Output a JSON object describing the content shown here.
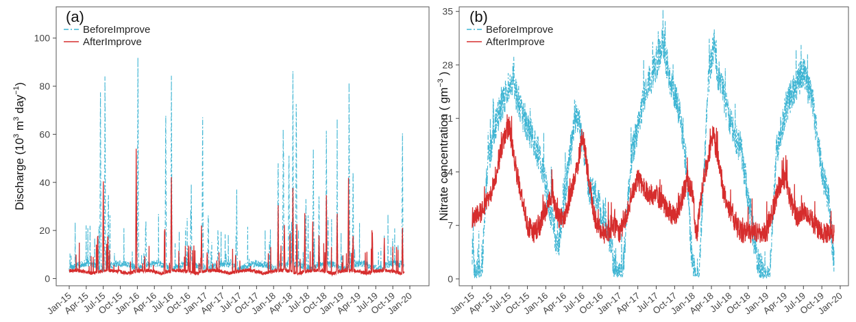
{
  "chart_data": [
    {
      "panel_label": "(a)",
      "type": "line",
      "ylabel": "Discharge (10^3 m^3 day^-1)",
      "ylabel_parts": {
        "pre": "Discharge (10",
        "e1": "3",
        "mid": " m",
        "e2": "3",
        "mid2": " day",
        "e3": "−1",
        "post": ")"
      },
      "xlabel": "",
      "ylim": [
        -3,
        113
      ],
      "yticks": [
        0,
        20,
        40,
        60,
        80,
        100
      ],
      "ytick_labels": [
        "0",
        "20",
        "40",
        "60",
        "80",
        "100"
      ],
      "xtick_labels": [
        "Jan-15",
        "Apr-15",
        "Jul-15",
        "Oct-15",
        "Jan-16",
        "Apr-16",
        "Jul-16",
        "Oct-16",
        "Jan-17",
        "Apr-17",
        "Jul-17",
        "Oct-17",
        "Jan-18",
        "Apr-18",
        "Jul-18",
        "Oct-18",
        "Jan-19",
        "Apr-19",
        "Jul-19",
        "Oct-19",
        "Jan-20"
      ],
      "grid": false,
      "legend_position": "top-left",
      "series": [
        {
          "name": "BeforeImprove",
          "color": "#3fb5d3",
          "style": "dashdot",
          "peaks": [
            [
              5.5,
              82
            ],
            [
              6.3,
              89
            ],
            [
              6.9,
              40
            ],
            [
              12.1,
              96
            ],
            [
              13.5,
              25
            ],
            [
              17,
              75
            ],
            [
              18,
              88
            ],
            [
              21.5,
              40
            ],
            [
              23.5,
              68
            ],
            [
              24.5,
              30
            ],
            [
              26.2,
              22
            ],
            [
              29.5,
              37
            ],
            [
              36.8,
              52
            ],
            [
              37.7,
              65
            ],
            [
              38.7,
              56
            ],
            [
              39.4,
              87
            ],
            [
              40,
              80
            ],
            [
              41.7,
              35
            ],
            [
              43,
              56
            ],
            [
              44,
              38
            ],
            [
              45.3,
              62
            ],
            [
              47.2,
              46
            ],
            [
              49.3,
              83
            ],
            [
              50,
              50
            ],
            [
              53.4,
              18
            ],
            [
              55.5,
              19
            ],
            [
              58.7,
              63
            ]
          ],
          "base": 4.5
        },
        {
          "name": "AfterImprove",
          "color": "#d62d2d",
          "style": "solid",
          "peaks": [
            [
              5,
              20
            ],
            [
              6,
              41
            ],
            [
              6.8,
              20
            ],
            [
              11.8,
              54
            ],
            [
              13.3,
              10
            ],
            [
              16.8,
              23
            ],
            [
              18,
              44
            ],
            [
              21,
              15
            ],
            [
              23.3,
              23
            ],
            [
              24.3,
              12
            ],
            [
              26,
              8
            ],
            [
              29.3,
              10
            ],
            [
              36.8,
              25
            ],
            [
              37.9,
              24
            ],
            [
              38.9,
              20
            ],
            [
              39.4,
              38
            ],
            [
              40.1,
              25
            ],
            [
              41.5,
              28
            ],
            [
              42.9,
              25
            ],
            [
              44,
              20
            ],
            [
              45.3,
              35
            ],
            [
              47.2,
              27
            ],
            [
              49.2,
              42
            ],
            [
              50,
              20
            ],
            [
              53.4,
              20
            ],
            [
              55.5,
              18
            ],
            [
              58.7,
              22
            ]
          ],
          "base": 2.5
        }
      ]
    },
    {
      "panel_label": "(b)",
      "type": "line",
      "ylabel": "Nitrate concentration ( gm^-3 )",
      "ylabel_parts": {
        "pre": "Nitrate concentration ( gm",
        "e1": "−3",
        "post": " )"
      },
      "xlabel": "",
      "ylim": [
        -0.9,
        35.6
      ],
      "yticks": [
        0,
        7,
        14,
        21,
        28,
        35
      ],
      "ytick_labels": [
        "0",
        "7",
        "14",
        "21",
        "28",
        "35"
      ],
      "xtick_labels": [
        "Jan-15",
        "Apr-15",
        "Jul-15",
        "Oct-15",
        "Jan-16",
        "Apr-16",
        "Jul-16",
        "Oct-16",
        "Jan-17",
        "Apr-17",
        "Jul-17",
        "Oct-17",
        "Jan-18",
        "Apr-18",
        "Jul-18",
        "Oct-18",
        "Jan-19",
        "Apr-19",
        "Jul-19",
        "Oct-19",
        "Jan-20"
      ],
      "grid": false,
      "legend_position": "top-left",
      "series": [
        {
          "name": "BeforeImprove",
          "color": "#3fb5d3",
          "style": "dashdot",
          "knots": [
            [
              0,
              4
            ],
            [
              0.4,
              0.5
            ],
            [
              1.5,
              0.5
            ],
            [
              2.5,
              15
            ],
            [
              4,
              21
            ],
            [
              5.5,
              24
            ],
            [
              6.5,
              26
            ],
            [
              8,
              22
            ],
            [
              10,
              18
            ],
            [
              11,
              16
            ],
            [
              12,
              12
            ],
            [
              13,
              8
            ],
            [
              14,
              4
            ],
            [
              15,
              11
            ],
            [
              16,
              16
            ],
            [
              17,
              22
            ],
            [
              18,
              18
            ],
            [
              19,
              12
            ],
            [
              20,
              11
            ],
            [
              21.5,
              8
            ],
            [
              22,
              7
            ],
            [
              23.5,
              0.5
            ],
            [
              24.5,
              0.5
            ],
            [
              26,
              16
            ],
            [
              28,
              24
            ],
            [
              30,
              28
            ],
            [
              31,
              31
            ],
            [
              32,
              27
            ],
            [
              34,
              21
            ],
            [
              35,
              14
            ],
            [
              35.7,
              4
            ],
            [
              36.2,
              0.5
            ],
            [
              37,
              0.5
            ],
            [
              38.5,
              26
            ],
            [
              39.5,
              31
            ],
            [
              40,
              27
            ],
            [
              42,
              21
            ],
            [
              44,
              16
            ],
            [
              45.5,
              8
            ],
            [
              46.5,
              2
            ],
            [
              47.8,
              0.5
            ],
            [
              48.5,
              0.5
            ],
            [
              49.5,
              16
            ],
            [
              51,
              22
            ],
            [
              52.5,
              25
            ],
            [
              54,
              27
            ],
            [
              55.5,
              23
            ],
            [
              57,
              14
            ],
            [
              58,
              11
            ],
            [
              59,
              2
            ]
          ]
        },
        {
          "name": "AfterImprove",
          "color": "#d62d2d",
          "style": "solid",
          "knots": [
            [
              0,
              8
            ],
            [
              2,
              9
            ],
            [
              3,
              11
            ],
            [
              4,
              14
            ],
            [
              5,
              18
            ],
            [
              6,
              20
            ],
            [
              7,
              15
            ],
            [
              8,
              11
            ],
            [
              9,
              7
            ],
            [
              10,
              6
            ],
            [
              11,
              7
            ],
            [
              12,
              9
            ],
            [
              13,
              11
            ],
            [
              14,
              8
            ],
            [
              15,
              8
            ],
            [
              16,
              11
            ],
            [
              17,
              14
            ],
            [
              18,
              19
            ],
            [
              19,
              13
            ],
            [
              20,
              8
            ],
            [
              21,
              6
            ],
            [
              22,
              6
            ],
            [
              23,
              7
            ],
            [
              24,
              6
            ],
            [
              25,
              8
            ],
            [
              26,
              11
            ],
            [
              27,
              13
            ],
            [
              28,
              12
            ],
            [
              29,
              11
            ],
            [
              30,
              11
            ],
            [
              31,
              10
            ],
            [
              32,
              9
            ],
            [
              33,
              8
            ],
            [
              34,
              10
            ],
            [
              35,
              13
            ],
            [
              36,
              11
            ],
            [
              36.5,
              5
            ],
            [
              37.5,
              12
            ],
            [
              38.5,
              16
            ],
            [
              39.3,
              19
            ],
            [
              40,
              16
            ],
            [
              41,
              11
            ],
            [
              42,
              9
            ],
            [
              43,
              7
            ],
            [
              44,
              6
            ],
            [
              45,
              6
            ],
            [
              46,
              6
            ],
            [
              47,
              6
            ],
            [
              48,
              6
            ],
            [
              49,
              9
            ],
            [
              50,
              12
            ],
            [
              51,
              13
            ],
            [
              52,
              10
            ],
            [
              53,
              8
            ],
            [
              54,
              9
            ],
            [
              55,
              8
            ],
            [
              56,
              7
            ],
            [
              57,
              6
            ],
            [
              58,
              6
            ],
            [
              59,
              6
            ]
          ]
        }
      ]
    }
  ]
}
